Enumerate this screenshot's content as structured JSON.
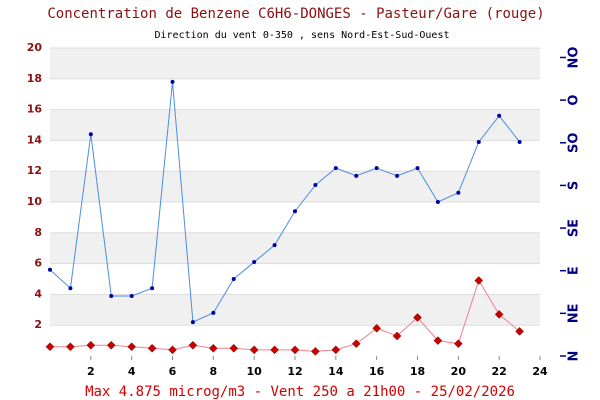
{
  "chart_data": {
    "type": "line",
    "title": "Concentration de Benzene C6H6-DONGES - Pasteur/Gare (rouge)",
    "subtitle": "Direction du vent 0-350 , sens Nord-Est-Sud-Ouest",
    "annotation": "Max 4.875 microg/m3 - Vent 250  a 21h00 - 25/02/2026",
    "x": [
      0,
      1,
      2,
      3,
      4,
      5,
      6,
      7,
      8,
      9,
      10,
      11,
      12,
      13,
      14,
      15,
      16,
      17,
      18,
      19,
      20,
      21,
      22,
      23
    ],
    "series": [
      {
        "color": "#4a8ee6",
        "marker_color": "#0000a0",
        "marker": "dot",
        "values": [
          5.6,
          4.4,
          14.4,
          3.9,
          3.9,
          4.4,
          17.8,
          2.2,
          2.8,
          5.0,
          6.1,
          7.2,
          9.4,
          11.1,
          12.2,
          11.7,
          12.2,
          11.7,
          12.2,
          10.0,
          10.6,
          13.9,
          15.6,
          13.9
        ]
      },
      {
        "color": "#f08090",
        "marker_color": "#c80000",
        "marker": "diamond",
        "values": [
          0.6,
          0.6,
          0.7,
          0.7,
          0.6,
          0.5,
          0.4,
          0.7,
          0.5,
          0.5,
          0.4,
          0.4,
          0.4,
          0.3,
          0.4,
          0.8,
          1.8,
          1.3,
          2.5,
          1.0,
          0.8,
          4.9,
          2.7,
          1.6
        ]
      }
    ],
    "xlim": [
      0,
      24
    ],
    "xticks": [
      2,
      4,
      6,
      8,
      10,
      12,
      14,
      16,
      18,
      20,
      22,
      24
    ],
    "ylim": [
      0,
      20
    ],
    "yticks": [
      2,
      4,
      6,
      8,
      10,
      12,
      14,
      16,
      18,
      20
    ],
    "y2lim": [
      0,
      325
    ],
    "y2ticks": [
      {
        "value": 0,
        "label": "N"
      },
      {
        "value": 45,
        "label": "NE"
      },
      {
        "value": 90,
        "label": "E"
      },
      {
        "value": 135,
        "label": "SE"
      },
      {
        "value": 180,
        "label": "S"
      },
      {
        "value": 225,
        "label": "SO"
      },
      {
        "value": 270,
        "label": "O"
      },
      {
        "value": 315,
        "label": "NO"
      }
    ],
    "grid": true
  }
}
